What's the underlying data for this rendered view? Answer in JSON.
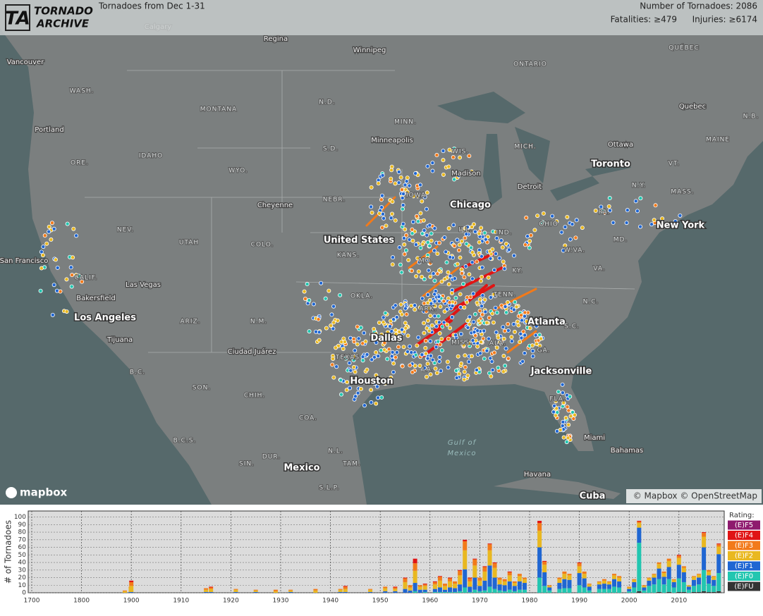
{
  "header": {
    "logo_mark": "TA",
    "logo_top": "TORNADO",
    "logo_bottom": "ARCHIVE",
    "title": "Tornadoes from Dec 1-31",
    "count": "Number of Tornadoes: 2086",
    "fatalities": "Fatalities: ≥479",
    "injuries": "Injuries: ≥6174"
  },
  "map": {
    "labels": [
      "Calgary",
      "Regina",
      "Winnipeg",
      "ONTARIO",
      "QUÉBEC",
      "Vancouver",
      "WASH.",
      "MONTANA",
      "N.D.",
      "MINN.",
      "Quebec",
      "N.B.",
      "Portland",
      "IDAHO",
      "S.D.",
      "Minneapolis",
      "WIS.",
      "MICH.",
      "Ottawa",
      "MAINE",
      "ORE.",
      "WYO.",
      "Madison",
      "Toronto",
      "VT.",
      "Detroit",
      "N.Y.",
      "MASS.",
      "IOWA",
      "NEBR.",
      "Cheyenne",
      "Chicago",
      "NEV.",
      "UTAH",
      "COLO.",
      "United States",
      "KANS.",
      "ILL.",
      "IND.",
      "OHIO",
      "PA.",
      "New York",
      "MD.",
      "W.VA.",
      "San Francisco",
      "MO.",
      "KY.",
      "VA.",
      "CALIF.",
      "Las Vegas",
      "Bakersfield",
      "OKLA.",
      "TENN.",
      "N.C.",
      "ARK.",
      "Los Angeles",
      "ARIZ.",
      "N.M.",
      "Atlanta",
      "S.C.",
      "Dallas",
      "Tijuana",
      "MISS.",
      "ALA.",
      "GA.",
      "Ciudad Juárez",
      "TEXAS",
      "B.C.",
      "LA.",
      "Jacksonville",
      "Houston",
      "SON.",
      "CHIH.",
      "FLA.",
      "COA.",
      "Gulf of",
      "Mexico",
      "B.C.S.",
      "Miami",
      "N.L.",
      "DUR.",
      "Bahamas",
      "SIN.",
      "TAM.",
      "Mexico",
      "Havana",
      "S.L.P.",
      "Cuba"
    ],
    "logo": "mapbox",
    "attribution": "© Mapbox © OpenStreetMap"
  },
  "chart_data": {
    "type": "bar",
    "stacked": true,
    "y_label": "# of Tornadoes",
    "legend_title": "Rating:",
    "legend": "right",
    "grid": true,
    "x": [
      1887,
      1899,
      1900,
      1915,
      1916,
      1921,
      1925,
      1929,
      1932,
      1937,
      1942,
      1943,
      1948,
      1951,
      1953,
      1955,
      1956,
      1957,
      1958,
      1959,
      1961,
      1962,
      1963,
      1964,
      1965,
      1966,
      1967,
      1968,
      1969,
      1970,
      1971,
      1972,
      1973,
      1974,
      1975,
      1976,
      1977,
      1978,
      1979,
      1982,
      1983,
      1984,
      1986,
      1987,
      1988,
      1990,
      1991,
      1992,
      1994,
      1995,
      1996,
      1997,
      1998,
      2000,
      2001,
      2002,
      2003,
      2004,
      2005,
      2006,
      2007,
      2008,
      2009,
      2010,
      2011,
      2012,
      2013,
      2014,
      2015,
      2016,
      2017,
      2018
    ],
    "xlim": [
      1700,
      2019
    ],
    "xticks": [
      1700,
      1800,
      1900,
      1910,
      1920,
      1930,
      1940,
      1950,
      1960,
      1970,
      1980,
      1990,
      2000,
      2010
    ],
    "ylim": [
      0,
      108
    ],
    "yticks": [
      0,
      10,
      20,
      30,
      40,
      50,
      60,
      70,
      80,
      90,
      100
    ],
    "series": [
      {
        "name": "(E)F5",
        "color": "#8e1a6e",
        "values": [
          0,
          0,
          0,
          0,
          0,
          0,
          0,
          0,
          0,
          0,
          0,
          0,
          0,
          0,
          0,
          0,
          0,
          0,
          0,
          0,
          0,
          0,
          0,
          0,
          0,
          0,
          0,
          0,
          0,
          0,
          0,
          0,
          0,
          0,
          0,
          0,
          0,
          0,
          0,
          0,
          0,
          0,
          0,
          0,
          0,
          0,
          0,
          0,
          0,
          0,
          0,
          0,
          0,
          0,
          0,
          0,
          0,
          0,
          0,
          0,
          0,
          0,
          0,
          0,
          0,
          0,
          0,
          0,
          0,
          0,
          0,
          0
        ]
      },
      {
        "name": "(E)F4",
        "color": "#e01414",
        "values": [
          0,
          0,
          2,
          0,
          1,
          0,
          0,
          0,
          0,
          0,
          0,
          1,
          0,
          0,
          1,
          1,
          0,
          6,
          0,
          1,
          1,
          1,
          0,
          1,
          0,
          1,
          2,
          1,
          1,
          0,
          1,
          1,
          1,
          0,
          0,
          1,
          0,
          0,
          0,
          3,
          1,
          0,
          0,
          0,
          0,
          1,
          0,
          0,
          0,
          0,
          0,
          0,
          0,
          0,
          0,
          1,
          0,
          0,
          0,
          0,
          0,
          0,
          0,
          1,
          0,
          0,
          0,
          0,
          1,
          0,
          0,
          1
        ]
      },
      {
        "name": "(E)F3",
        "color": "#f27a1a",
        "values": [
          1,
          2,
          5,
          2,
          2,
          1,
          1,
          2,
          1,
          2,
          1,
          3,
          1,
          2,
          2,
          5,
          3,
          10,
          2,
          2,
          3,
          5,
          3,
          4,
          3,
          6,
          12,
          4,
          8,
          4,
          6,
          8,
          6,
          3,
          3,
          4,
          2,
          3,
          2,
          10,
          4,
          1,
          2,
          3,
          2,
          4,
          3,
          1,
          1,
          2,
          1,
          2,
          2,
          1,
          1,
          2,
          1,
          1,
          1,
          2,
          2,
          3,
          1,
          3,
          2,
          0,
          1,
          1,
          5,
          2,
          1,
          3
        ]
      },
      {
        "name": "(E)F2",
        "color": "#e9b820",
        "values": [
          2,
          5,
          8,
          3,
          4,
          3,
          2,
          2,
          2,
          3,
          3,
          4,
          3,
          4,
          3,
          9,
          4,
          16,
          4,
          5,
          6,
          9,
          5,
          8,
          6,
          12,
          25,
          7,
          16,
          7,
          12,
          20,
          13,
          6,
          5,
          8,
          4,
          7,
          5,
          22,
          10,
          2,
          5,
          7,
          6,
          9,
          6,
          3,
          3,
          4,
          3,
          5,
          5,
          2,
          3,
          6,
          2,
          3,
          4,
          6,
          5,
          8,
          3,
          9,
          6,
          2,
          4,
          4,
          14,
          5,
          4,
          10
        ]
      },
      {
        "name": "(E)F1",
        "color": "#1f66d2",
        "values": [
          0,
          1,
          1,
          1,
          1,
          1,
          1,
          0,
          1,
          0,
          1,
          1,
          1,
          2,
          2,
          5,
          3,
          11,
          4,
          3,
          4,
          6,
          3,
          6,
          5,
          9,
          24,
          7,
          16,
          7,
          13,
          28,
          15,
          8,
          8,
          11,
          7,
          11,
          9,
          40,
          18,
          4,
          8,
          12,
          11,
          16,
          12,
          5,
          6,
          7,
          6,
          10,
          8,
          3,
          7,
          20,
          4,
          7,
          9,
          14,
          10,
          16,
          7,
          18,
          13,
          4,
          8,
          9,
          30,
          11,
          8,
          25
        ]
      },
      {
        "name": "(E)F0",
        "color": "#22c6b0",
        "values": [
          0,
          0,
          0,
          0,
          0,
          0,
          0,
          0,
          0,
          0,
          0,
          0,
          0,
          0,
          0,
          0,
          0,
          2,
          0,
          1,
          1,
          1,
          1,
          1,
          1,
          2,
          7,
          1,
          4,
          2,
          3,
          8,
          5,
          3,
          2,
          4,
          2,
          4,
          4,
          20,
          9,
          3,
          5,
          6,
          6,
          10,
          7,
          3,
          5,
          5,
          5,
          8,
          7,
          2,
          7,
          64,
          3,
          9,
          11,
          17,
          11,
          17,
          7,
          18,
          13,
          4,
          8,
          10,
          28,
          11,
          8,
          24
        ]
      },
      {
        "name": "(E)FU",
        "color": "#333333",
        "values": [
          0,
          0,
          0,
          0,
          0,
          0,
          0,
          0,
          0,
          0,
          0,
          0,
          0,
          0,
          0,
          0,
          0,
          0,
          0,
          0,
          0,
          0,
          0,
          0,
          0,
          0,
          0,
          0,
          0,
          0,
          0,
          0,
          0,
          0,
          0,
          0,
          0,
          0,
          0,
          0,
          0,
          0,
          0,
          0,
          0,
          0,
          0,
          0,
          0,
          0,
          0,
          0,
          0,
          0,
          0,
          2,
          0,
          0,
          0,
          1,
          0,
          1,
          0,
          1,
          1,
          0,
          1,
          1,
          2,
          1,
          1,
          2
        ]
      }
    ]
  }
}
